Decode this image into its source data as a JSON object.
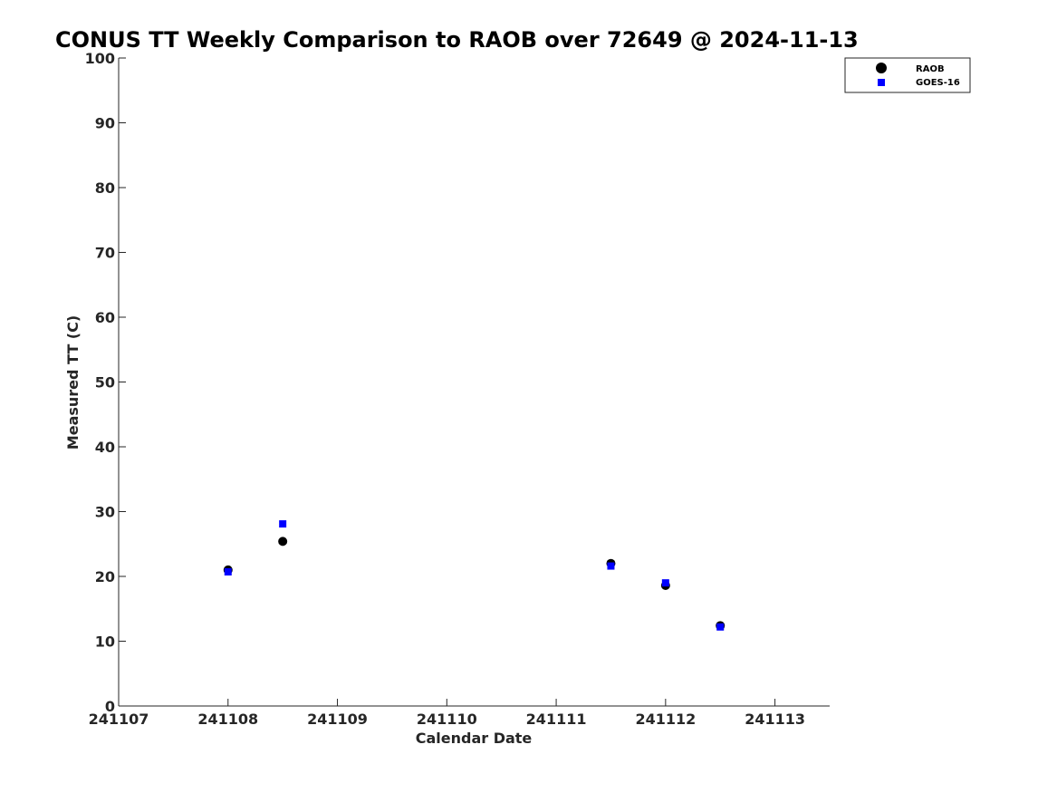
{
  "chart_data": {
    "type": "scatter",
    "title": "CONUS TT Weekly Comparison to RAOB over 72649 @ 2024-11-13",
    "xlabel": "Calendar Date",
    "ylabel": "Measured TT (C)",
    "x_ticks": [
      "241107",
      "241108",
      "241109",
      "241110",
      "241111",
      "241112",
      "241113"
    ],
    "xlim_days": [
      0,
      6.5
    ],
    "ylim": [
      0,
      100
    ],
    "y_ticks": [
      0,
      10,
      20,
      30,
      40,
      50,
      60,
      70,
      80,
      90,
      100
    ],
    "grid": false,
    "legend_position": "top-right",
    "series": [
      {
        "name": "RAOB",
        "marker": "circle",
        "color": "#000000",
        "points": [
          {
            "x": 1.0,
            "y": 21.0
          },
          {
            "x": 1.5,
            "y": 25.4
          },
          {
            "x": 4.5,
            "y": 22.0
          },
          {
            "x": 5.0,
            "y": 18.6
          },
          {
            "x": 5.5,
            "y": 12.4
          }
        ]
      },
      {
        "name": "GOES-16",
        "marker": "square",
        "color": "#0000ff",
        "points": [
          {
            "x": 1.0,
            "y": 20.7
          },
          {
            "x": 1.5,
            "y": 28.1
          },
          {
            "x": 4.5,
            "y": 21.6
          },
          {
            "x": 5.0,
            "y": 19.0
          },
          {
            "x": 5.5,
            "y": 12.2
          }
        ]
      }
    ]
  }
}
